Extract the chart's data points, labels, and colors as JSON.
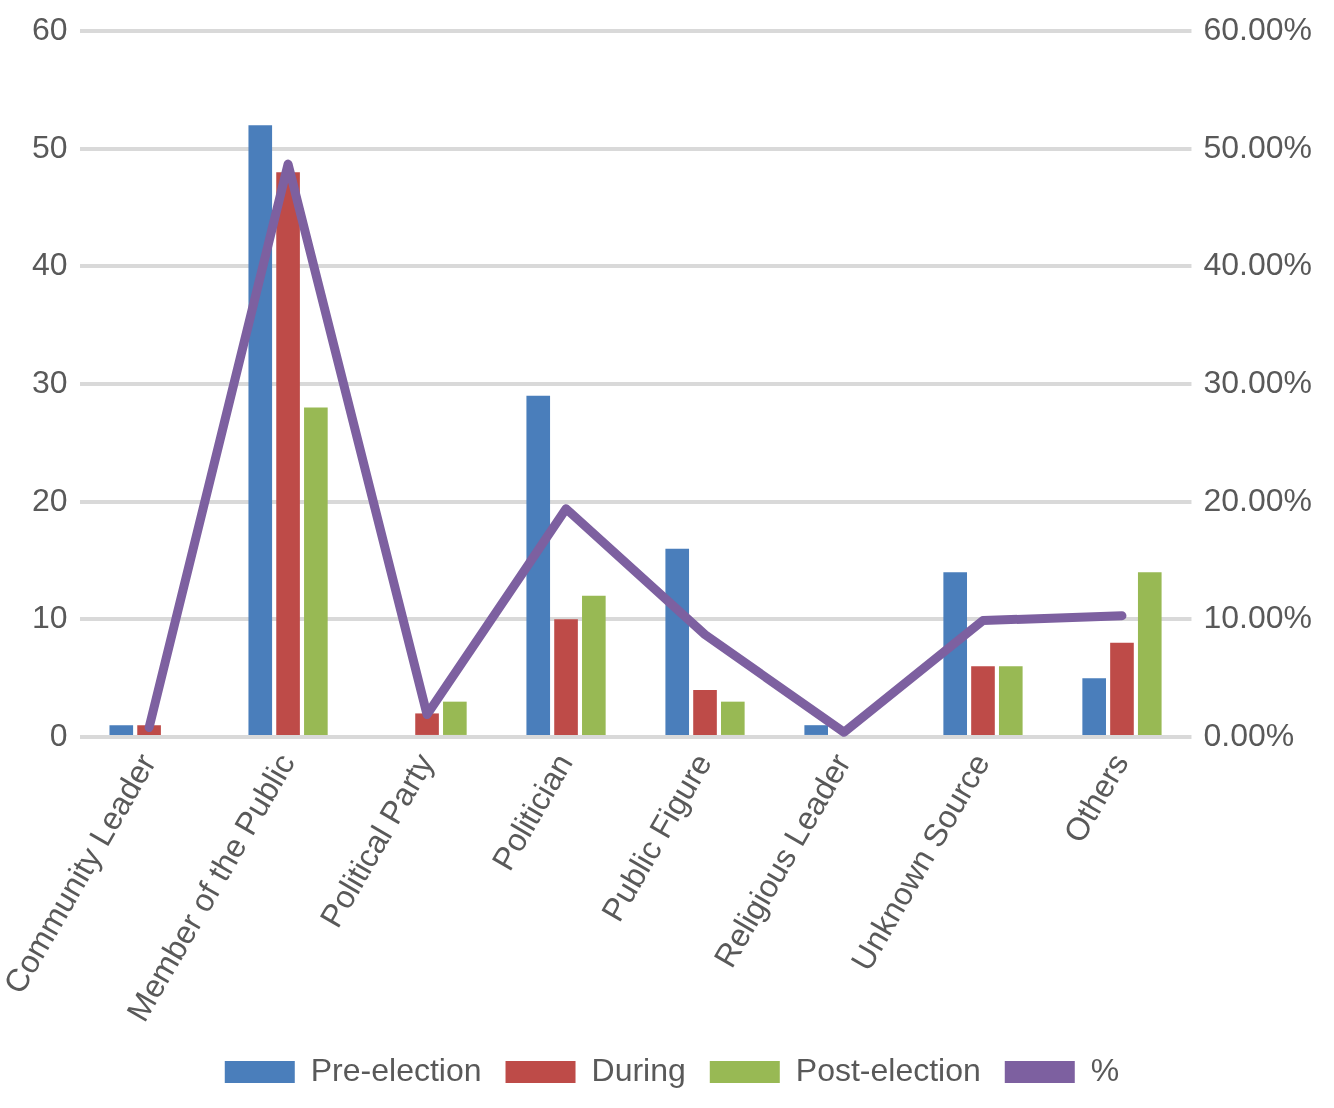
{
  "chart_data": {
    "type": "bar",
    "categories": [
      "Community Leader",
      "Member of the Public",
      "Political Party",
      "Politician",
      "Public Figure",
      "Religious Leader",
      "Unknown Source",
      "Others"
    ],
    "series": [
      {
        "name": "Pre-election",
        "color": "#4a7ebb",
        "values": [
          1,
          52,
          0,
          29,
          16,
          1,
          14,
          5
        ]
      },
      {
        "name": "During",
        "color": "#be4b48",
        "values": [
          1,
          48,
          2,
          10,
          4,
          0,
          6,
          8
        ]
      },
      {
        "name": "Post-election",
        "color": "#98b954",
        "values": [
          0,
          28,
          3,
          12,
          3,
          0,
          6,
          14
        ]
      },
      {
        "name": "%",
        "type": "line",
        "axis": "y2",
        "color": "#7d60a0",
        "values": [
          0.8,
          48.7,
          1.9,
          19.4,
          8.7,
          0.4,
          9.9,
          10.3
        ]
      }
    ],
    "ylim": [
      0,
      60
    ],
    "yticks": [
      0,
      10,
      20,
      30,
      40,
      50,
      60
    ],
    "y2lim": [
      0,
      60
    ],
    "y2ticks": [
      {
        "value": 0,
        "label": "0.00%"
      },
      {
        "value": 10,
        "label": "10.00%"
      },
      {
        "value": 20,
        "label": "20.00%"
      },
      {
        "value": 30,
        "label": "30.00%"
      },
      {
        "value": 40,
        "label": "40.00%"
      },
      {
        "value": 50,
        "label": "50.00%"
      },
      {
        "value": 60,
        "label": "60.00%"
      }
    ],
    "grid": "y",
    "legend": "bottom",
    "marker": "none",
    "line_style": "solid"
  }
}
